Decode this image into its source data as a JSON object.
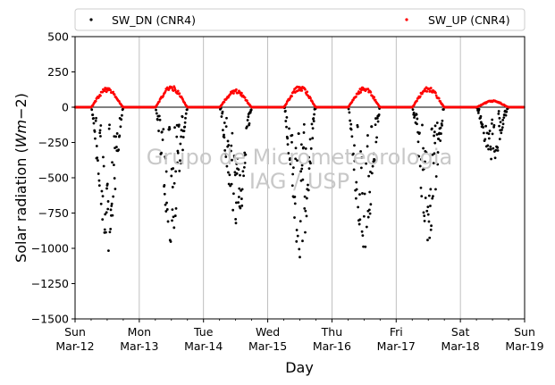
{
  "chart_data": {
    "type": "scatter",
    "title": "",
    "xlabel": "Day",
    "ylabel": "Solar radiation ($W m{-}2$)",
    "ylabel_parts": {
      "prefix": "Solar radiation (",
      "unit_w": "W",
      "unit_m": "m",
      "unit_exp": "−2",
      "suffix": ")"
    },
    "ylim": [
      -1500,
      500
    ],
    "yticks": [
      500,
      250,
      0,
      -250,
      -500,
      -750,
      -1000,
      -1250,
      -1500
    ],
    "xlim": [
      "2017-03-12",
      "2017-03-19"
    ],
    "xticks": [
      {
        "day": "Sun",
        "date": "Mar-12"
      },
      {
        "day": "Mon",
        "date": "Mar-13"
      },
      {
        "day": "Tue",
        "date": "Mar-14"
      },
      {
        "day": "Wed",
        "date": "Mar-15"
      },
      {
        "day": "Thu",
        "date": "Mar-16"
      },
      {
        "day": "Fri",
        "date": "Mar-17"
      },
      {
        "day": "Sat",
        "date": "Mar-18"
      },
      {
        "day": "Sun",
        "date": "Mar-19"
      }
    ],
    "grid": "vertical",
    "legend_placement": "top",
    "watermark": [
      "Grupo de Micrometeorologia",
      "IAG / USP"
    ],
    "series": [
      {
        "name": "SW_DN (CNR4)",
        "color": "#000000",
        "marker": "dot",
        "daily_peak": [
          -1030,
          -960,
          -860,
          -1100,
          -1070,
          -960,
          -400
        ]
      },
      {
        "name": "SW_UP (CNR4)",
        "color": "#ff0000",
        "marker": "dot",
        "daily_peak": [
          145,
          160,
          130,
          160,
          150,
          150,
          50
        ]
      }
    ]
  }
}
